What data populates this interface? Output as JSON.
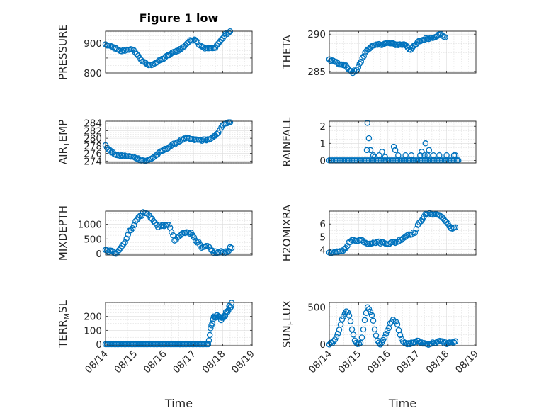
{
  "figure": {
    "title": "Figure 1 low"
  },
  "chart_data": [
    {
      "id": "pressure",
      "type": "scatter",
      "title": "Figure 1 low",
      "ylabel_parts": [
        "PRESSURE"
      ],
      "xlabel": "",
      "ylim": [
        800,
        940
      ],
      "yticks": [
        800,
        850,
        900
      ],
      "ytick_labels": [
        "800",
        "",
        "900"
      ],
      "xlim": [
        0,
        5
      ],
      "xtick_labels": [
        "08/14",
        "08/15",
        "08/16",
        "08/17",
        "08/18",
        "08/19"
      ],
      "show_xticklabels": false,
      "knots": [
        [
          0,
          895
        ],
        [
          0.3,
          884
        ],
        [
          0.5,
          872
        ],
        [
          0.8,
          880
        ],
        [
          1.0,
          873
        ],
        [
          1.1,
          858
        ],
        [
          1.3,
          835
        ],
        [
          1.5,
          825
        ],
        [
          1.8,
          838
        ],
        [
          2.3,
          868
        ],
        [
          2.6,
          882
        ],
        [
          2.85,
          906
        ],
        [
          3.05,
          914
        ],
        [
          3.2,
          895
        ],
        [
          3.4,
          883
        ],
        [
          3.7,
          882
        ],
        [
          3.9,
          905
        ],
        [
          4.1,
          930
        ],
        [
          4.25,
          937
        ]
      ],
      "n": 85,
      "noise": 3
    },
    {
      "id": "theta",
      "type": "scatter",
      "ylabel_parts": [
        "THETA"
      ],
      "xlabel": "",
      "ylim": [
        284.8,
        290.4
      ],
      "yticks": [
        285,
        290
      ],
      "ytick_labels": [
        "285",
        "290"
      ],
      "xlim": [
        0,
        5
      ],
      "xtick_labels": [
        "08/14",
        "08/15",
        "08/16",
        "08/17",
        "08/18",
        "08/19"
      ],
      "show_xticklabels": false,
      "knots": [
        [
          0,
          286.6
        ],
        [
          0.2,
          286.3
        ],
        [
          0.4,
          285.8
        ],
        [
          0.55,
          285.9
        ],
        [
          0.65,
          285.2
        ],
        [
          0.8,
          284.9
        ],
        [
          0.95,
          285.3
        ],
        [
          1.1,
          286.5
        ],
        [
          1.25,
          287.7
        ],
        [
          1.4,
          288.3
        ],
        [
          1.7,
          288.6
        ],
        [
          2.0,
          288.8
        ],
        [
          2.3,
          288.6
        ],
        [
          2.6,
          288.6
        ],
        [
          2.75,
          287.9
        ],
        [
          2.9,
          288.4
        ],
        [
          3.05,
          289.0
        ],
        [
          3.3,
          289.4
        ],
        [
          3.55,
          289.6
        ],
        [
          3.8,
          290.0
        ],
        [
          3.95,
          289.6
        ]
      ],
      "n": 85,
      "noise": 0.12
    },
    {
      "id": "air_temp",
      "type": "scatter",
      "ylabel_parts": [
        "AIR",
        "T",
        "EMP"
      ],
      "xlabel": "",
      "ylim": [
        273.5,
        284.5
      ],
      "yticks": [
        274,
        276,
        278,
        280,
        282,
        284
      ],
      "ytick_labels": [
        "274",
        "276",
        "278",
        "280",
        "282",
        "284"
      ],
      "xlim": [
        0,
        5
      ],
      "xtick_labels": [
        "08/14",
        "08/15",
        "08/16",
        "08/17",
        "08/18",
        "08/19"
      ],
      "show_xticklabels": false,
      "knots": [
        [
          0,
          278
        ],
        [
          0.2,
          276.3
        ],
        [
          0.4,
          275.5
        ],
        [
          0.7,
          275.3
        ],
        [
          1.0,
          275.0
        ],
        [
          1.2,
          274.3
        ],
        [
          1.4,
          274.0
        ],
        [
          1.6,
          274.8
        ],
        [
          1.9,
          276.5
        ],
        [
          2.3,
          278.3
        ],
        [
          2.6,
          279.6
        ],
        [
          2.8,
          280.0
        ],
        [
          3.0,
          279.6
        ],
        [
          3.3,
          279.5
        ],
        [
          3.6,
          279.8
        ],
        [
          3.8,
          281.0
        ],
        [
          3.95,
          283.0
        ],
        [
          4.1,
          284.0
        ],
        [
          4.25,
          284.1
        ]
      ],
      "n": 85,
      "noise": 0.2
    },
    {
      "id": "rainfall",
      "type": "scatter",
      "ylabel_parts": [
        "RAINFALL"
      ],
      "xlabel": "",
      "ylim": [
        -0.15,
        2.3
      ],
      "yticks": [
        0,
        1,
        2
      ],
      "ytick_labels": [
        "0",
        "1",
        "2"
      ],
      "xlim": [
        0,
        5
      ],
      "xtick_labels": [
        "08/14",
        "08/15",
        "08/16",
        "08/17",
        "08/18",
        "08/19"
      ],
      "show_xticklabels": false,
      "zero_from": 0,
      "zero_to": 4.4,
      "zero_n": 86,
      "points": [
        [
          1.3,
          2.2
        ],
        [
          1.35,
          1.3
        ],
        [
          1.28,
          0.6
        ],
        [
          1.4,
          0.6
        ],
        [
          1.5,
          0.3
        ],
        [
          1.55,
          0.2
        ],
        [
          1.7,
          0.3
        ],
        [
          1.8,
          0.5
        ],
        [
          1.9,
          0.2
        ],
        [
          2.2,
          0.8
        ],
        [
          2.25,
          0.6
        ],
        [
          2.35,
          0.3
        ],
        [
          2.6,
          0.3
        ],
        [
          2.8,
          0.3
        ],
        [
          3.1,
          0.3
        ],
        [
          3.15,
          0.5
        ],
        [
          3.25,
          0.3
        ],
        [
          3.28,
          1.0
        ],
        [
          3.35,
          0.3
        ],
        [
          3.4,
          0.6
        ],
        [
          3.55,
          0.3
        ],
        [
          3.75,
          0.3
        ],
        [
          4.0,
          0.3
        ],
        [
          4.25,
          0.3
        ],
        [
          4.3,
          0.3
        ]
      ]
    },
    {
      "id": "mixdepth",
      "type": "scatter",
      "ylabel_parts": [
        "MIXDEPTH"
      ],
      "xlabel": "",
      "ylim": [
        -50,
        1450
      ],
      "yticks": [
        0,
        500,
        1000
      ],
      "ytick_labels": [
        "0",
        "500",
        "1000"
      ],
      "xlim": [
        0,
        5
      ],
      "xtick_labels": [
        "08/14",
        "08/15",
        "08/16",
        "08/17",
        "08/18",
        "08/19"
      ],
      "show_xticklabels": false,
      "knots": [
        [
          0,
          100
        ],
        [
          0.2,
          60
        ],
        [
          0.35,
          20
        ],
        [
          0.6,
          300
        ],
        [
          0.85,
          800
        ],
        [
          1.1,
          1200
        ],
        [
          1.3,
          1400
        ],
        [
          1.5,
          1320
        ],
        [
          1.7,
          1000
        ],
        [
          1.9,
          900
        ],
        [
          2.05,
          1000
        ],
        [
          2.2,
          900
        ],
        [
          2.35,
          420
        ],
        [
          2.55,
          620
        ],
        [
          2.8,
          780
        ],
        [
          3.0,
          600
        ],
        [
          3.15,
          380
        ],
        [
          3.3,
          150
        ],
        [
          3.45,
          250
        ],
        [
          3.6,
          100
        ],
        [
          3.8,
          20
        ],
        [
          4.1,
          60
        ],
        [
          4.3,
          200
        ]
      ],
      "n": 85,
      "noise": 55
    },
    {
      "id": "h2omixra",
      "type": "scatter",
      "ylabel_parts": [
        "H2OMIXRA"
      ],
      "xlabel": "",
      "ylim": [
        3.6,
        7.0
      ],
      "yticks": [
        4,
        5,
        6
      ],
      "ytick_labels": [
        "4",
        "5",
        "6"
      ],
      "xlim": [
        0,
        5
      ],
      "xtick_labels": [
        "08/14",
        "08/15",
        "08/16",
        "08/17",
        "08/18",
        "08/19"
      ],
      "show_xticklabels": false,
      "knots": [
        [
          0,
          3.8
        ],
        [
          0.3,
          3.8
        ],
        [
          0.5,
          4.0
        ],
        [
          0.65,
          4.5
        ],
        [
          0.8,
          4.75
        ],
        [
          1.1,
          4.75
        ],
        [
          1.3,
          4.5
        ],
        [
          1.6,
          4.6
        ],
        [
          2.0,
          4.5
        ],
        [
          2.3,
          4.6
        ],
        [
          2.5,
          4.9
        ],
        [
          2.7,
          5.2
        ],
        [
          2.9,
          5.3
        ],
        [
          3.05,
          6.0
        ],
        [
          3.25,
          6.7
        ],
        [
          3.5,
          6.8
        ],
        [
          3.75,
          6.7
        ],
        [
          3.95,
          6.3
        ],
        [
          4.15,
          5.6
        ],
        [
          4.3,
          5.8
        ]
      ],
      "n": 85,
      "noise": 0.08
    },
    {
      "id": "terr_msl",
      "type": "scatter",
      "ylabel_parts": [
        "TERR",
        "M",
        "SL"
      ],
      "xlabel": "Time",
      "ylim": [
        -10,
        300
      ],
      "yticks": [
        0,
        100,
        200
      ],
      "ytick_labels": [
        "0",
        "100",
        "200"
      ],
      "xlim": [
        0,
        5
      ],
      "xtick_labels": [
        "08/14",
        "08/15",
        "08/16",
        "08/17",
        "08/18",
        "08/19"
      ],
      "show_xticklabels": true,
      "zero_from": 0,
      "zero_to": 3.5,
      "zero_n": 72,
      "knots": [
        [
          3.5,
          0
        ],
        [
          3.55,
          60
        ],
        [
          3.6,
          130
        ],
        [
          3.7,
          190
        ],
        [
          3.8,
          200
        ],
        [
          3.9,
          180
        ],
        [
          4.0,
          190
        ],
        [
          4.1,
          220
        ],
        [
          4.2,
          260
        ],
        [
          4.3,
          290
        ]
      ],
      "n": 30,
      "noise": 15
    },
    {
      "id": "sun_flux",
      "type": "scatter",
      "ylabel_parts": [
        "SUN",
        "F",
        "LUX"
      ],
      "xlabel": "Time",
      "ylim": [
        -20,
        560
      ],
      "yticks": [
        0,
        500
      ],
      "ytick_labels": [
        "0",
        "500"
      ],
      "xlim": [
        0,
        5
      ],
      "xtick_labels": [
        "08/14",
        "08/15",
        "08/16",
        "08/17",
        "08/18",
        "08/19"
      ],
      "show_xticklabels": true,
      "knots": [
        [
          0,
          0
        ],
        [
          0.15,
          30
        ],
        [
          0.3,
          150
        ],
        [
          0.45,
          350
        ],
        [
          0.6,
          450
        ],
        [
          0.7,
          350
        ],
        [
          0.8,
          150
        ],
        [
          0.9,
          20
        ],
        [
          1.0,
          0
        ],
        [
          1.1,
          50
        ],
        [
          1.2,
          300
        ],
        [
          1.3,
          500
        ],
        [
          1.45,
          400
        ],
        [
          1.55,
          200
        ],
        [
          1.65,
          40
        ],
        [
          1.75,
          0
        ],
        [
          1.9,
          100
        ],
        [
          2.05,
          250
        ],
        [
          2.15,
          330
        ],
        [
          2.3,
          300
        ],
        [
          2.4,
          150
        ],
        [
          2.5,
          30
        ],
        [
          2.65,
          0
        ],
        [
          2.85,
          20
        ],
        [
          3.0,
          40
        ],
        [
          3.15,
          20
        ],
        [
          3.35,
          0
        ],
        [
          3.6,
          20
        ],
        [
          3.8,
          40
        ],
        [
          4.0,
          10
        ],
        [
          4.3,
          30
        ]
      ],
      "n": 90,
      "noise": 12
    }
  ]
}
